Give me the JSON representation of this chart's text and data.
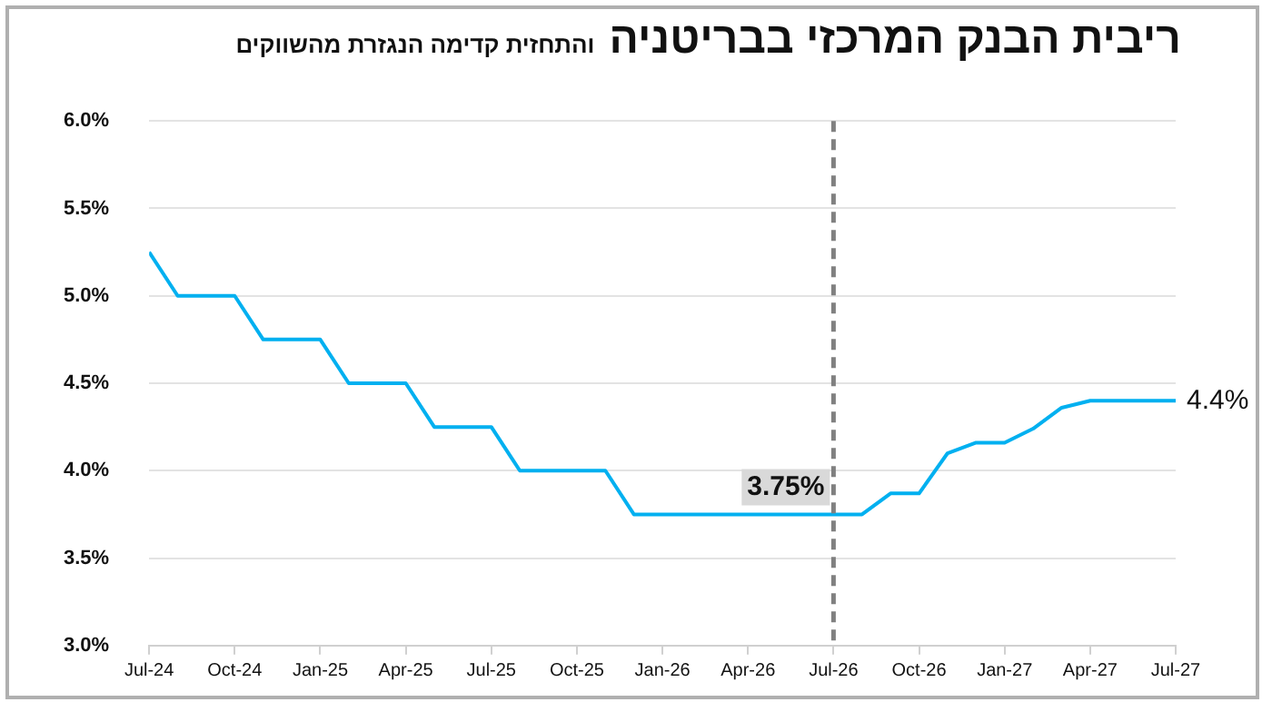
{
  "chart_data": {
    "type": "line",
    "title": "ריבית הבנק המרכזי בבריטניה",
    "subtitle": "והתחזית קדימה הנגזרת מהשווקים",
    "x": [
      "2024-07",
      "2024-08",
      "2024-09",
      "2024-10",
      "2024-11",
      "2024-12",
      "2025-01",
      "2025-02",
      "2025-03",
      "2025-04",
      "2025-05",
      "2025-06",
      "2025-07",
      "2025-08",
      "2025-09",
      "2025-10",
      "2025-11",
      "2025-12",
      "2026-01",
      "2026-02",
      "2026-03",
      "2026-04",
      "2026-05",
      "2026-06",
      "2026-07",
      "2026-08",
      "2026-09",
      "2026-10",
      "2026-11",
      "2026-12",
      "2027-01",
      "2027-02",
      "2027-03",
      "2027-04",
      "2027-05",
      "2027-06",
      "2027-07"
    ],
    "series": [
      {
        "color": "#00b0f0",
        "values": [
          5.25,
          5.0,
          5.0,
          5.0,
          4.75,
          4.75,
          4.75,
          4.5,
          4.5,
          4.5,
          4.25,
          4.25,
          4.25,
          4.0,
          4.0,
          4.0,
          4.0,
          3.75,
          3.75,
          3.75,
          3.75,
          3.75,
          3.75,
          3.75,
          3.75,
          3.75,
          3.87,
          3.87,
          4.1,
          4.16,
          4.16,
          4.24,
          4.36,
          4.4,
          4.4,
          4.4,
          4.4
        ]
      }
    ],
    "xlim": [
      "2024-07",
      "2027-07"
    ],
    "xticks": [
      {
        "value": "2024-07",
        "label": "Jul-24"
      },
      {
        "value": "2024-10",
        "label": "Oct-24"
      },
      {
        "value": "2025-01",
        "label": "Jan-25"
      },
      {
        "value": "2025-04",
        "label": "Apr-25"
      },
      {
        "value": "2025-07",
        "label": "Jul-25"
      },
      {
        "value": "2025-10",
        "label": "Oct-25"
      },
      {
        "value": "2026-01",
        "label": "Jan-26"
      },
      {
        "value": "2026-04",
        "label": "Apr-26"
      },
      {
        "value": "2026-07",
        "label": "Jul-26"
      },
      {
        "value": "2026-10",
        "label": "Oct-26"
      },
      {
        "value": "2027-01",
        "label": "Jan-27"
      },
      {
        "value": "2027-04",
        "label": "Apr-27"
      },
      {
        "value": "2027-07",
        "label": "Jul-27"
      }
    ],
    "ylim": [
      3.0,
      6.0
    ],
    "yticks": [
      {
        "value": 3.0,
        "label": "3.0%"
      },
      {
        "value": 3.5,
        "label": "3.5%"
      },
      {
        "value": 4.0,
        "label": "4.0%"
      },
      {
        "value": 4.5,
        "label": "4.5%"
      },
      {
        "value": 5.0,
        "label": "5.0%"
      },
      {
        "value": 5.5,
        "label": "5.5%"
      },
      {
        "value": 6.0,
        "label": "6.0%"
      }
    ],
    "grid": "y",
    "legend": false,
    "marker": "none",
    "line_style": "solid",
    "ref_lines": [
      {
        "axis": "x",
        "value": "2026-07",
        "color": "#808080",
        "line_style": "dashed"
      }
    ],
    "annotations": [
      {
        "text": "3.75%",
        "x": "2026-07",
        "y": 3.75
      },
      {
        "text": "4.4%",
        "x": "2027-07",
        "y": 4.4
      }
    ]
  }
}
